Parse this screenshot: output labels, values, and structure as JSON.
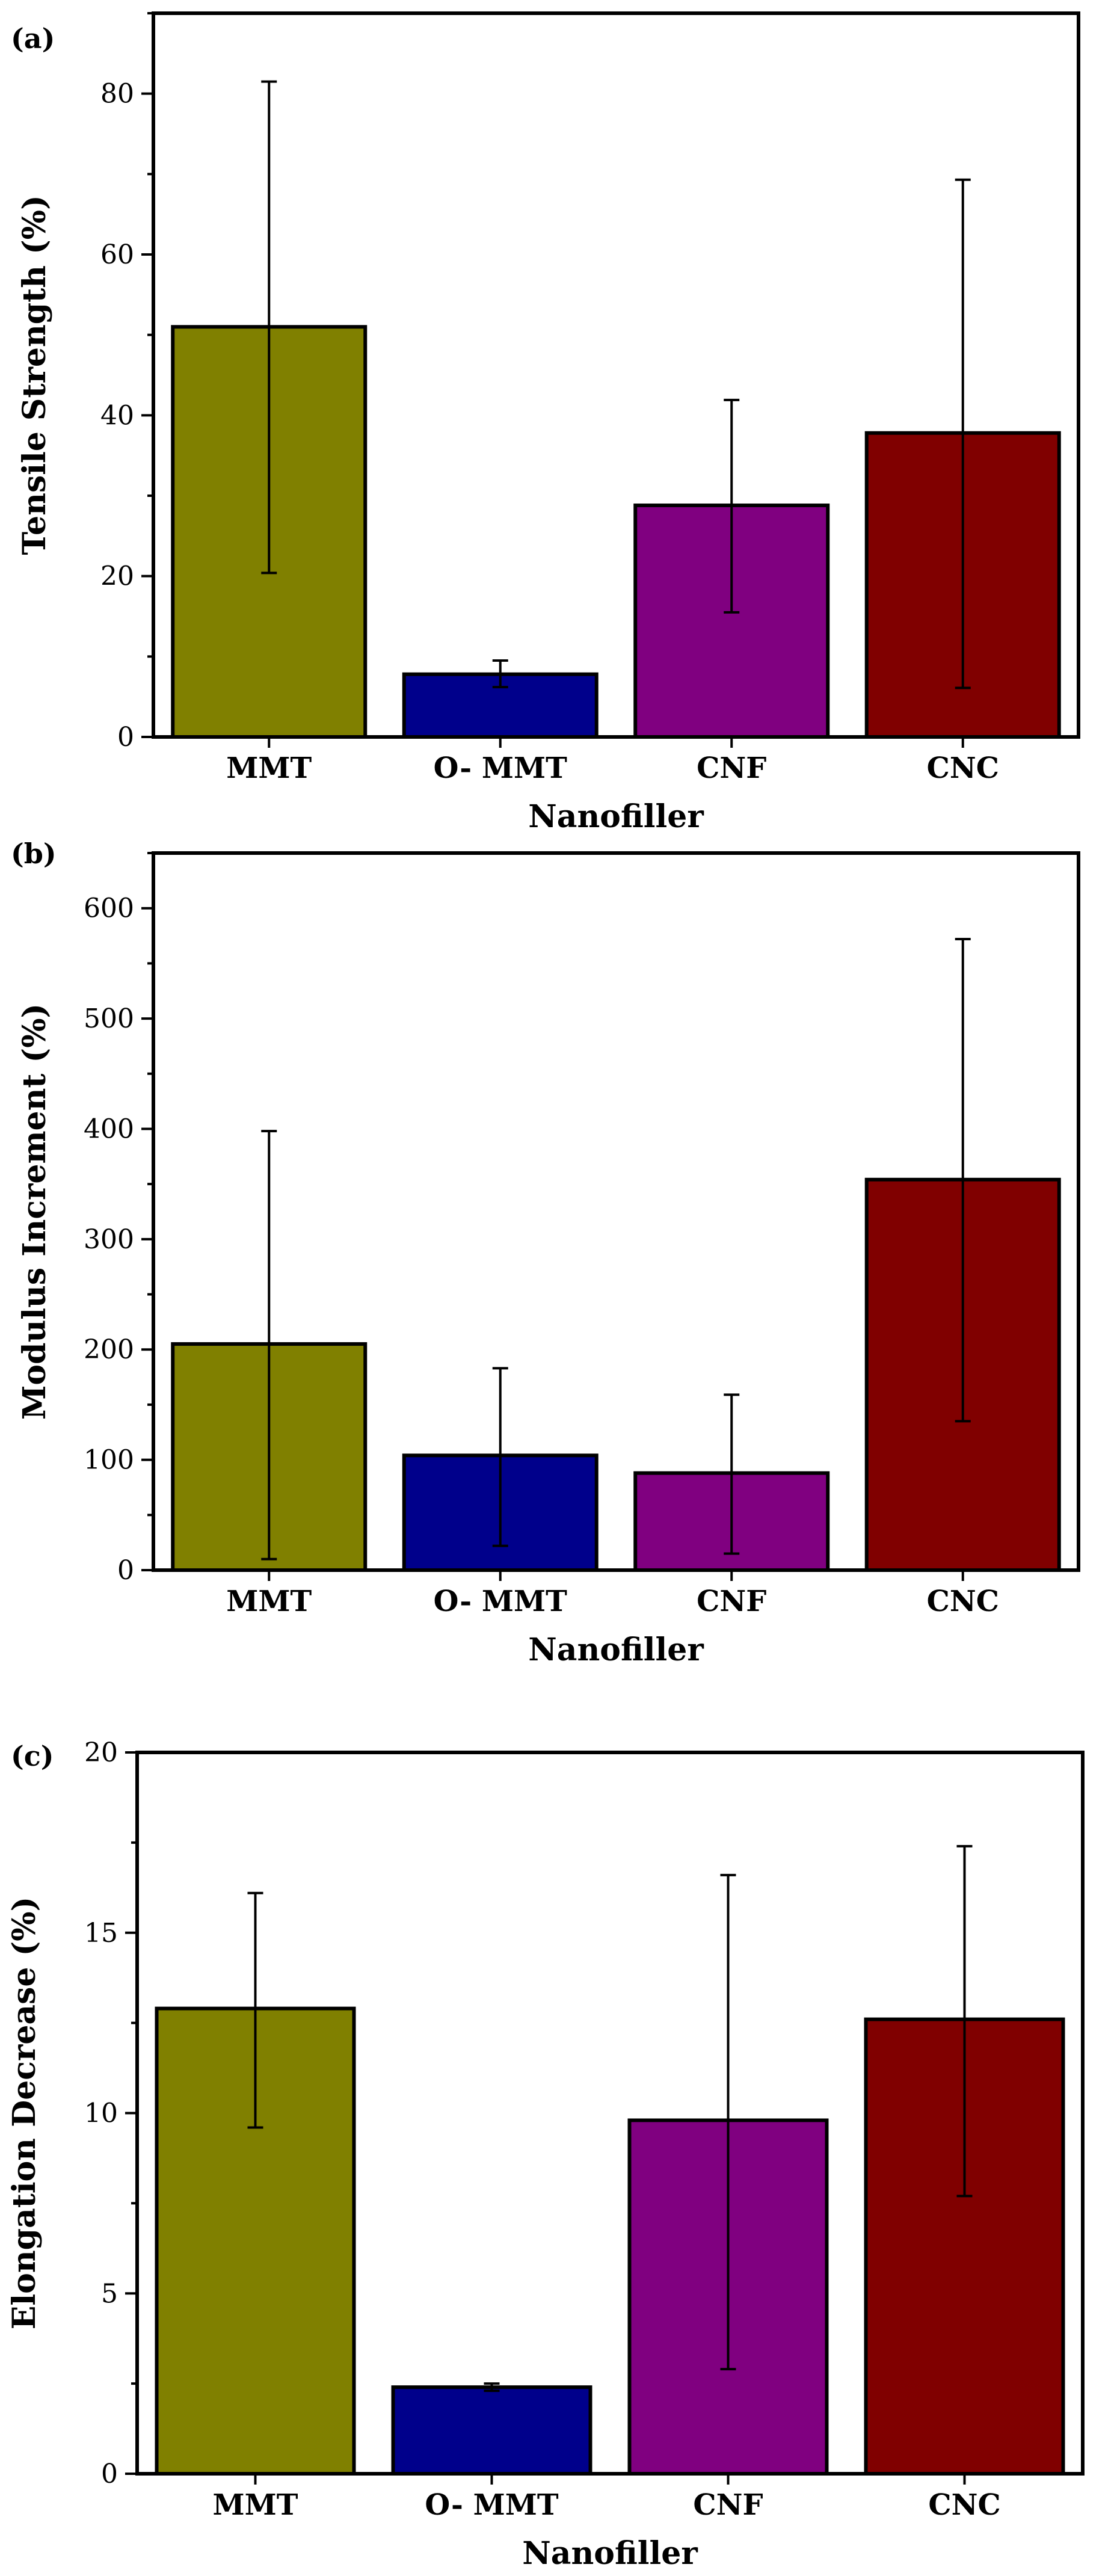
{
  "chart_data": [
    {
      "panel_label": "(a)",
      "type": "bar",
      "title": "",
      "xlabel": "Nanofiller",
      "ylabel": "Tensile Strength (%)",
      "categories": [
        "MMT",
        "O- MMT",
        "CNF",
        "CNC"
      ],
      "values": [
        51,
        7.8,
        28.8,
        37.8
      ],
      "error_low": [
        20.4,
        6.2,
        15.5,
        6.1
      ],
      "error_high": [
        81.5,
        9.5,
        41.9,
        69.3
      ],
      "ylim": [
        0,
        90
      ],
      "yticks": [
        0,
        20,
        40,
        60,
        80
      ],
      "ytick_labels": [
        "0",
        "20",
        "40",
        "60",
        "80"
      ],
      "yminor_step": 10,
      "bar_colors": [
        "#808000",
        "#00008b",
        "#800080",
        "#800000"
      ],
      "grid": false,
      "legend": "none"
    },
    {
      "panel_label": "(b)",
      "type": "bar",
      "title": "",
      "xlabel": "Nanofiller",
      "ylabel": "Modulus Increment (%)",
      "categories": [
        "MMT",
        "O- MMT",
        "CNF",
        "CNC"
      ],
      "values": [
        205,
        104,
        88,
        354
      ],
      "error_low": [
        10,
        22,
        15,
        135
      ],
      "error_high": [
        398,
        183,
        159,
        572
      ],
      "ylim": [
        0,
        650
      ],
      "yticks": [
        0,
        100,
        200,
        300,
        400,
        500,
        600
      ],
      "ytick_labels": [
        "0",
        "100",
        "200",
        "300",
        "400",
        "500",
        "600"
      ],
      "yminor_step": 50,
      "bar_colors": [
        "#808000",
        "#00008b",
        "#800080",
        "#800000"
      ],
      "grid": false,
      "legend": "none"
    },
    {
      "panel_label": "(c)",
      "type": "bar",
      "title": "",
      "xlabel": "Nanofiller",
      "ylabel": "Elongation Decrease (%)",
      "categories": [
        "MMT",
        "O- MMT",
        "CNF",
        "CNC"
      ],
      "values": [
        12.9,
        2.4,
        9.8,
        12.6
      ],
      "error_low": [
        9.6,
        2.3,
        2.9,
        7.7
      ],
      "error_high": [
        16.1,
        2.5,
        16.6,
        17.4
      ],
      "ylim": [
        0,
        20
      ],
      "yticks": [
        0,
        5,
        10,
        15,
        20
      ],
      "ytick_labels": [
        "0",
        "5",
        "10",
        "15",
        "20"
      ],
      "yminor_step": 2.5,
      "bar_colors": [
        "#808000",
        "#00008b",
        "#800080",
        "#800000"
      ],
      "grid": false,
      "legend": "none"
    }
  ]
}
